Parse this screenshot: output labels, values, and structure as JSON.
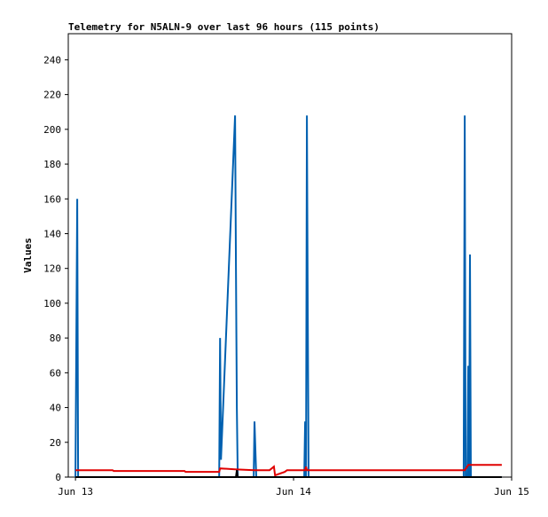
{
  "chart_data": {
    "type": "line",
    "title": "Telemetry for N5ALN-9 over last 96 hours (115 points)",
    "y_label": "Values",
    "xlim": [
      -0.033,
      2
    ],
    "xticks": [
      {
        "value": 0,
        "label": "Jun 13"
      },
      {
        "value": 1,
        "label": "Jun 14"
      },
      {
        "value": 2,
        "label": "Jun 15"
      }
    ],
    "ylim": [
      0,
      255
    ],
    "yticks": [
      0,
      20,
      40,
      60,
      80,
      100,
      120,
      140,
      160,
      180,
      200,
      220,
      240
    ],
    "grid": false,
    "series": [
      {
        "color": "#0060b0",
        "x": [
          0,
          0.008,
          0.012,
          0.659,
          0.663,
          0.667,
          0.732,
          0.736,
          0.74,
          0.744,
          0.817,
          0.821,
          0.825,
          0.829,
          1.049,
          1.053,
          1.057,
          1.061,
          1.065,
          1.069,
          1.78,
          1.785,
          1.789,
          1.797,
          1.801,
          1.805,
          1.809,
          1.813,
          1.955
        ],
        "values": [
          0,
          160,
          0,
          0,
          80,
          10,
          208,
          120,
          40,
          0,
          0,
          32,
          16,
          0,
          0,
          32,
          0,
          208,
          104,
          0,
          0,
          208,
          0,
          0,
          64,
          0,
          128,
          0,
          0
        ]
      },
      {
        "color": "#e00000",
        "x": [
          0,
          0.17,
          0.175,
          0.5,
          0.505,
          0.659,
          0.663,
          0.73,
          0.82,
          0.89,
          0.9,
          0.91,
          0.915,
          0.96,
          0.97,
          1.053,
          1.057,
          1.061,
          1.785,
          1.801,
          1.955
        ],
        "values": [
          4,
          4,
          3.5,
          3.5,
          3,
          3,
          5,
          4.5,
          4,
          4,
          5,
          6,
          1,
          3,
          4,
          4,
          6,
          4,
          4,
          7,
          7
        ]
      },
      {
        "color": "#000000",
        "x": [
          0,
          0.736,
          0.74,
          0.744,
          1.955
        ],
        "values": [
          0,
          0,
          4,
          0,
          0
        ]
      }
    ]
  }
}
